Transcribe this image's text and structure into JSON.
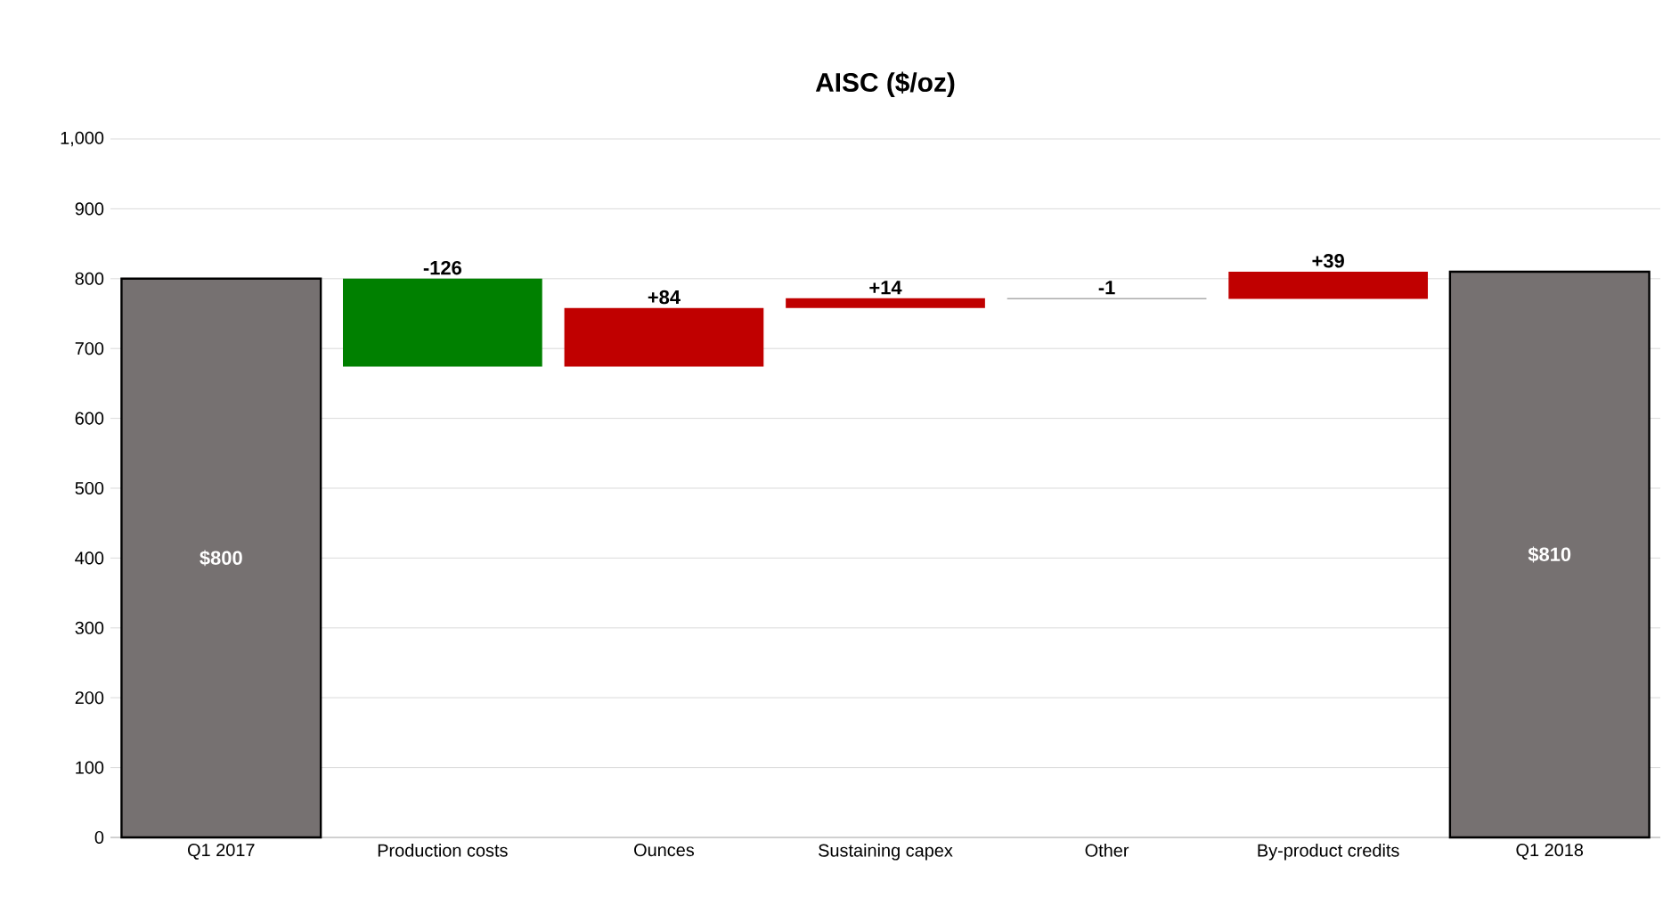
{
  "chart_data": {
    "type": "bar",
    "title": "AISC ($/oz)",
    "categories": [
      "Q1 2017",
      "Production costs",
      "Ounces",
      "Sustaining capex",
      "Other",
      "By-product credits",
      "Q1 2018"
    ],
    "values": [
      800,
      -126,
      84,
      14,
      -1,
      39,
      810
    ],
    "base": [
      0,
      800,
      674,
      758,
      772,
      771,
      0
    ],
    "colors": [
      "#767171",
      "#008000",
      "#c00000",
      "#c00000",
      "#595959",
      "#c00000",
      "#767171"
    ],
    "value_labels": [
      "$800",
      "-126",
      "+84",
      "+14",
      "-1",
      "+39",
      "$810"
    ],
    "ylim": [
      0,
      1000
    ],
    "yticks": [
      0,
      100,
      200,
      300,
      400,
      500,
      600,
      700,
      800,
      900,
      {
        "value": 1000,
        "label": "1,000"
      }
    ],
    "grid": "y"
  }
}
